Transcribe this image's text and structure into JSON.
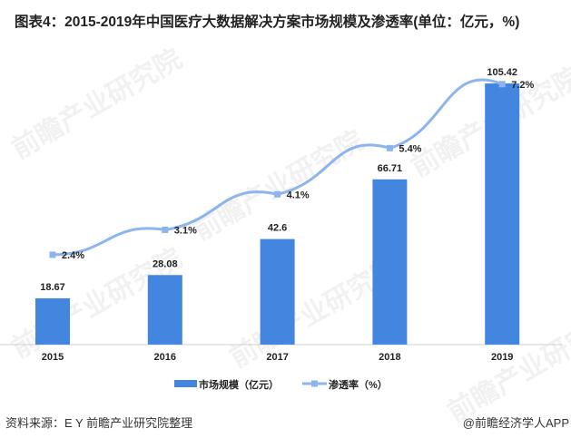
{
  "title": "图表4：2015-2019年中国医疗大数据解决方案市场规模及渗透率(单位：亿元，%)",
  "source": "资料来源：E Y 前瞻产业研究院整理",
  "credit": "@前瞻经济学人APP",
  "watermark": "前瞻产业研究院",
  "chart_data": {
    "type": "bar+line",
    "categories": [
      "2015",
      "2016",
      "2017",
      "2018",
      "2019"
    ],
    "series": [
      {
        "name": "市场规模（亿元）",
        "type": "bar",
        "axis": "left",
        "color": "#4286e0",
        "values": [
          18.67,
          28.08,
          42.6,
          66.71,
          105.42
        ],
        "labels": [
          "18.67",
          "28.08",
          "42.6",
          "66.71",
          "105.42"
        ]
      },
      {
        "name": "渗透率（%）",
        "type": "line",
        "axis": "right",
        "color": "#8db4ec",
        "values": [
          2.4,
          3.1,
          4.1,
          5.4,
          7.2
        ],
        "labels": [
          "2.4%",
          "3.1%",
          "4.1%",
          "5.4%",
          "7.2%"
        ]
      }
    ],
    "legend": "bottom",
    "grid": false
  }
}
